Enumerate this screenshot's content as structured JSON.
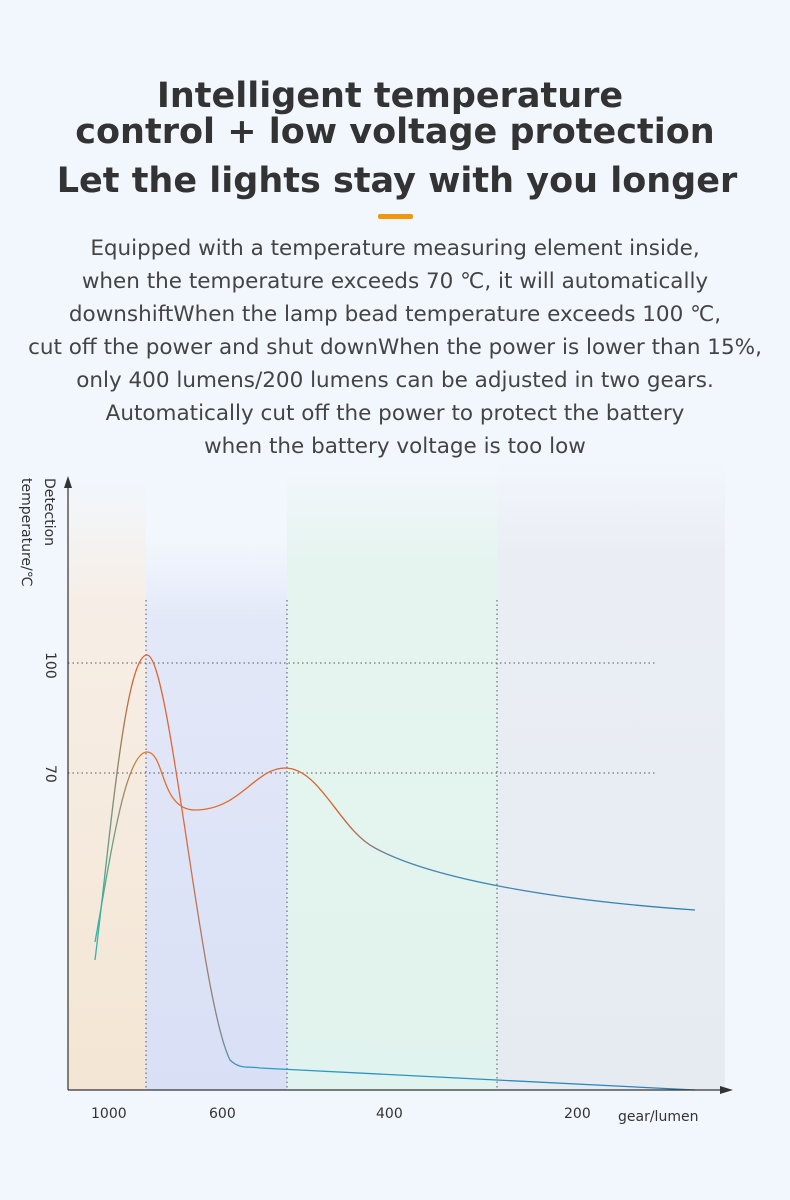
{
  "header": {
    "title_lines": [
      "Intelligent temperature",
      "control + low voltage protection"
    ],
    "subtitle": "Let the lights stay with you longer"
  },
  "description": {
    "lines": [
      "Equipped with a temperature measuring element inside,",
      "when the temperature exceeds 70 ℃, it will automatically",
      "downshiftWhen the lamp bead temperature exceeds 100 ℃,",
      "cut off the power and shut downWhen the power is lower than 15%,",
      "only 400 lumens/200 lumens can be adjusted in two gears.",
      "Automatically cut off the power to protect the battery",
      "when the battery voltage is too low"
    ]
  },
  "graph": {
    "y_label_lines": [
      "Detection",
      "temperature/℃"
    ],
    "y_ticks": [
      "100",
      "70"
    ],
    "x_ticks": [
      "1000",
      "600",
      "400",
      "200"
    ],
    "x_label": "gear/lumen"
  }
}
